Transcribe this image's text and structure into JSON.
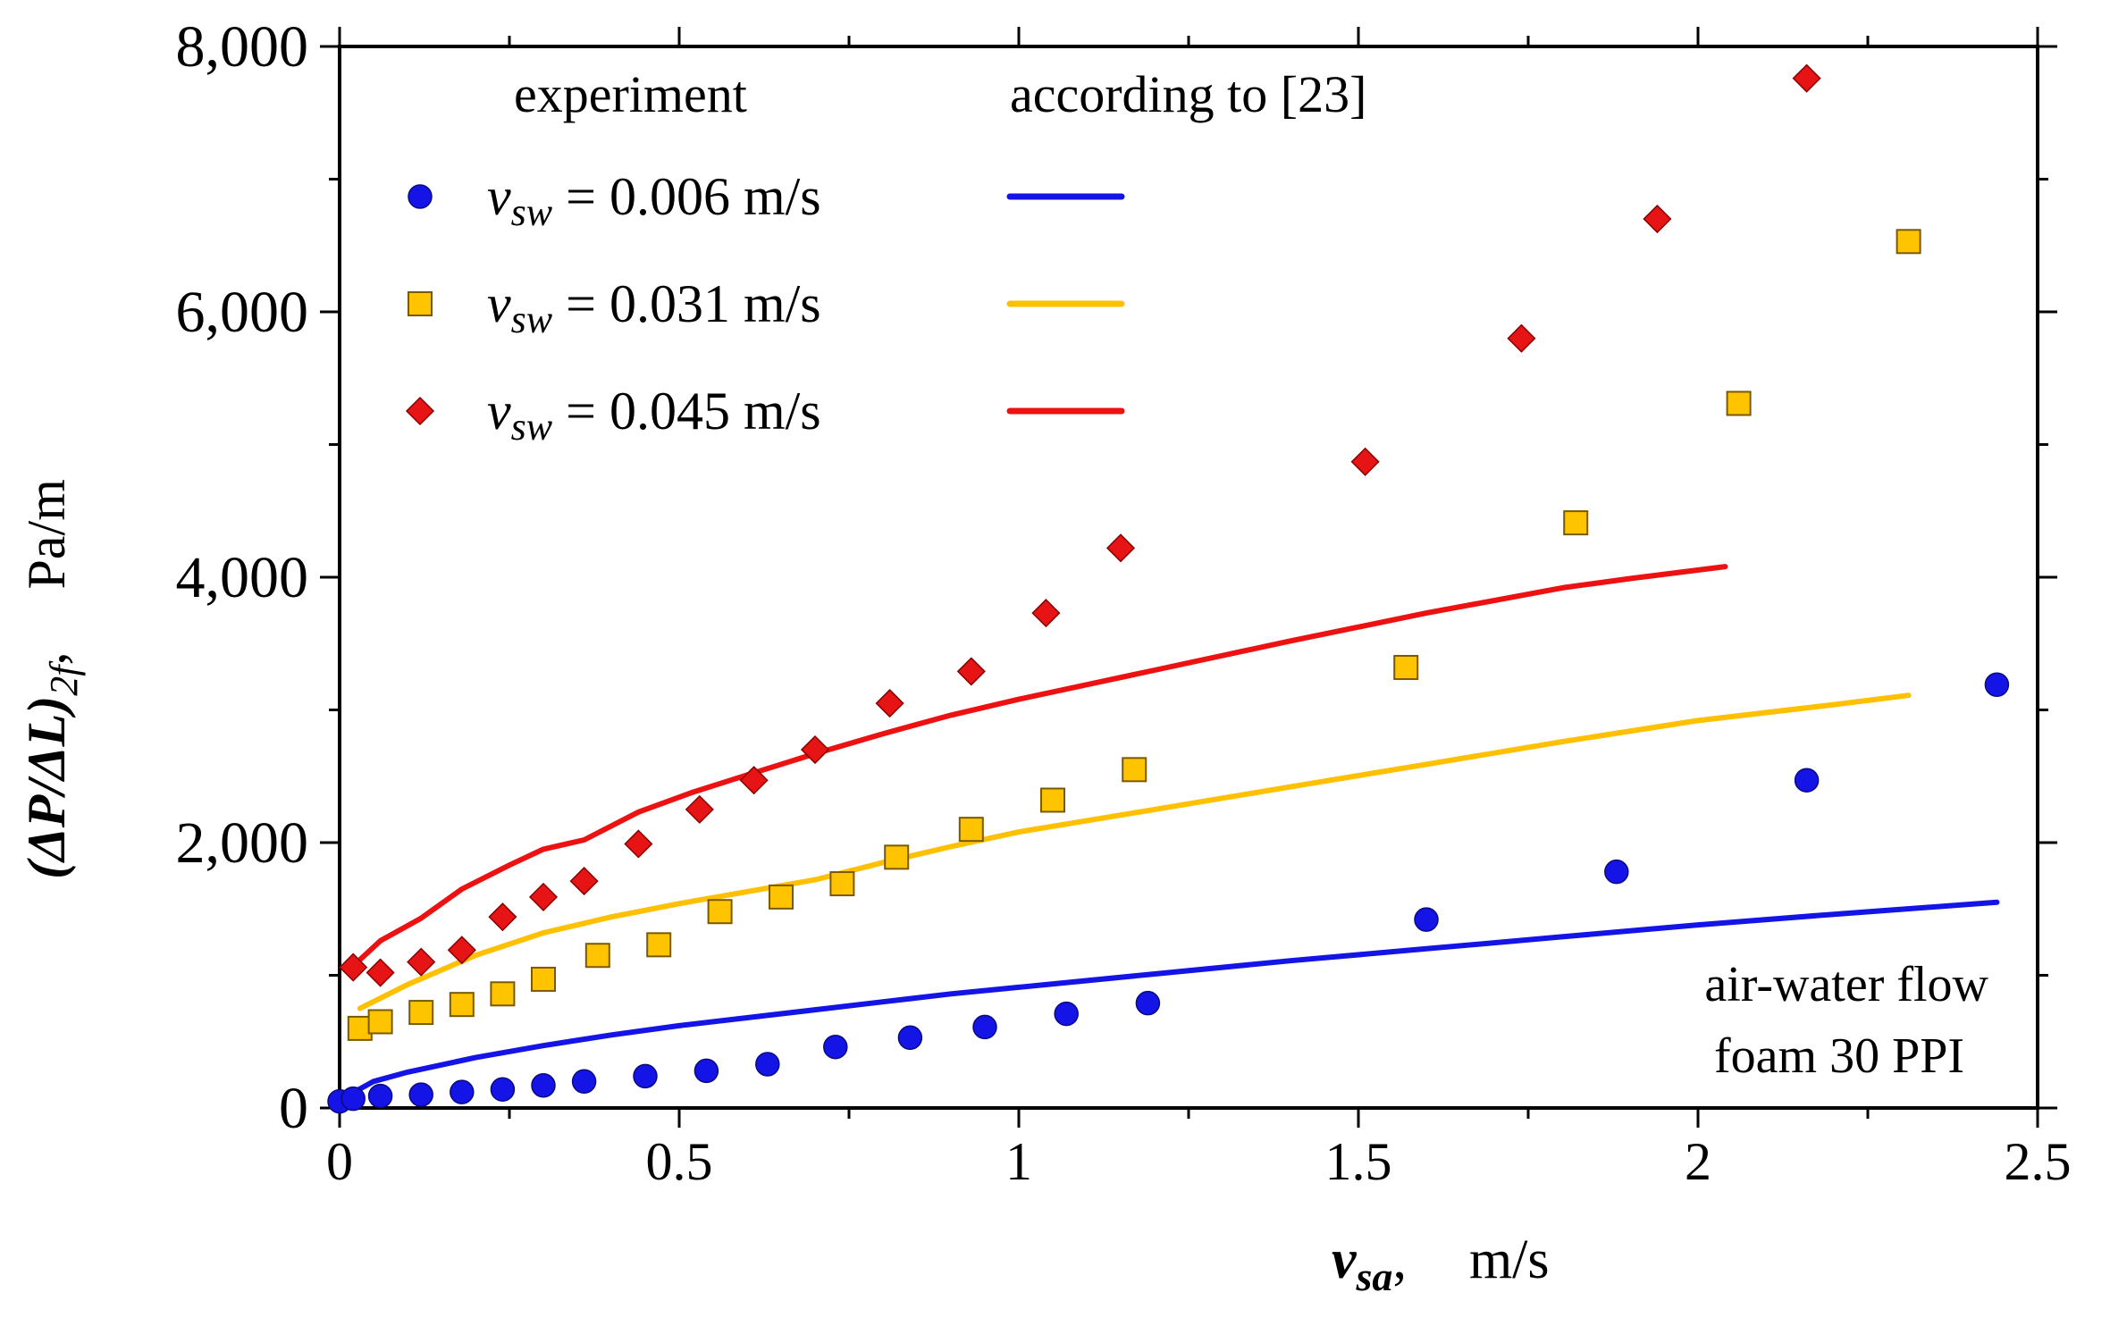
{
  "chart_data": {
    "type": "scatter",
    "xlabel_symbol": "v",
    "xlabel_subscript": "sa",
    "xlabel_sep": ",",
    "xlabel_unit": "m/s",
    "ylabel_symbol": "(ΔP/ΔL)",
    "ylabel_subscript": "2f",
    "ylabel_sep": ",",
    "ylabel_unit": "Pa/m",
    "xlim": [
      0,
      2.5
    ],
    "ylim": [
      0,
      8000
    ],
    "x_ticks": [
      0,
      0.5,
      1,
      1.5,
      2,
      2.5
    ],
    "x_tick_labels": [
      "0",
      "0.5",
      "1",
      "1.5",
      "2",
      "2.5"
    ],
    "x_minor_step": 0.25,
    "y_ticks": [
      0,
      2000,
      4000,
      6000,
      8000
    ],
    "y_tick_labels": [
      "0",
      "2,000",
      "4,000",
      "6,000",
      "8,000"
    ],
    "y_minor_step": 1000,
    "grid": false,
    "legend": {
      "header_experiment": "experiment",
      "header_model": "according to [23]",
      "placement": "top-left"
    },
    "annotation": [
      "air-water flow",
      "foam 30 PPI"
    ],
    "series": [
      {
        "name": "v_sw = 0.006 m/s",
        "label_symbol": "v",
        "label_subscript": "sw",
        "label_value": " = 0.006 m/s",
        "color": "#1414e6",
        "marker": "circle",
        "experiment": {
          "x": [
            0.0,
            0.02,
            0.06,
            0.12,
            0.18,
            0.24,
            0.3,
            0.36,
            0.45,
            0.54,
            0.63,
            0.73,
            0.84,
            0.95,
            1.07,
            1.19,
            1.6,
            1.88,
            2.16,
            2.44
          ],
          "y": [
            50,
            70,
            90,
            100,
            120,
            140,
            170,
            200,
            240,
            280,
            330,
            460,
            530,
            610,
            710,
            790,
            1420,
            1780,
            2470,
            3190
          ]
        },
        "model": {
          "x": [
            0.0,
            0.05,
            0.1,
            0.2,
            0.3,
            0.4,
            0.5,
            0.6,
            0.7,
            0.8,
            0.9,
            1.0,
            1.2,
            1.4,
            1.6,
            1.8,
            2.0,
            2.2,
            2.44
          ],
          "y": [
            60,
            200,
            270,
            380,
            470,
            550,
            620,
            680,
            740,
            800,
            860,
            910,
            1010,
            1110,
            1200,
            1290,
            1380,
            1460,
            1550
          ]
        }
      },
      {
        "name": "v_sw = 0.031 m/s",
        "label_symbol": "v",
        "label_subscript": "sw",
        "label_value": " = 0.031 m/s",
        "color": "#ffc400",
        "line_color": "#ffc000",
        "marker": "square",
        "experiment": {
          "x": [
            0.03,
            0.06,
            0.12,
            0.18,
            0.24,
            0.3,
            0.38,
            0.47,
            0.56,
            0.65,
            0.74,
            0.82,
            0.93,
            1.05,
            1.17,
            1.57,
            1.82,
            2.06,
            2.31
          ],
          "y": [
            600,
            650,
            720,
            780,
            860,
            970,
            1150,
            1230,
            1480,
            1590,
            1690,
            1890,
            2100,
            2320,
            2550,
            3320,
            4410,
            5310,
            6530
          ]
        },
        "model": {
          "x": [
            0.03,
            0.1,
            0.2,
            0.3,
            0.4,
            0.5,
            0.6,
            0.7,
            0.8,
            0.9,
            1.0,
            1.2,
            1.4,
            1.6,
            1.8,
            2.0,
            2.2,
            2.31
          ],
          "y": [
            750,
            930,
            1150,
            1320,
            1440,
            1540,
            1630,
            1720,
            1850,
            1970,
            2080,
            2250,
            2420,
            2590,
            2760,
            2920,
            3040,
            3110
          ]
        }
      },
      {
        "name": "v_sw = 0.045 m/s",
        "label_symbol": "v",
        "label_subscript": "sw",
        "label_value": " = 0.045 m/s",
        "color": "#e61414",
        "line_color": "#ee1111",
        "marker": "diamond",
        "experiment": {
          "x": [
            0.02,
            0.06,
            0.12,
            0.18,
            0.24,
            0.3,
            0.36,
            0.44,
            0.53,
            0.61,
            0.7,
            0.81,
            0.93,
            1.04,
            1.15,
            1.51,
            1.74,
            1.94,
            2.16
          ],
          "y": [
            1060,
            1020,
            1100,
            1190,
            1440,
            1590,
            1710,
            1990,
            2250,
            2470,
            2700,
            3050,
            3290,
            3730,
            4220,
            4870,
            5800,
            6700,
            7760
          ]
        },
        "model": {
          "x": [
            0.02,
            0.06,
            0.12,
            0.18,
            0.25,
            0.3,
            0.36,
            0.44,
            0.52,
            0.6,
            0.7,
            0.8,
            0.9,
            1.0,
            1.2,
            1.4,
            1.6,
            1.8,
            1.9,
            2.04
          ],
          "y": [
            1070,
            1260,
            1430,
            1650,
            1830,
            1950,
            2020,
            2230,
            2380,
            2510,
            2670,
            2820,
            2960,
            3080,
            3300,
            3520,
            3730,
            3920,
            3990,
            4080
          ]
        }
      }
    ]
  }
}
